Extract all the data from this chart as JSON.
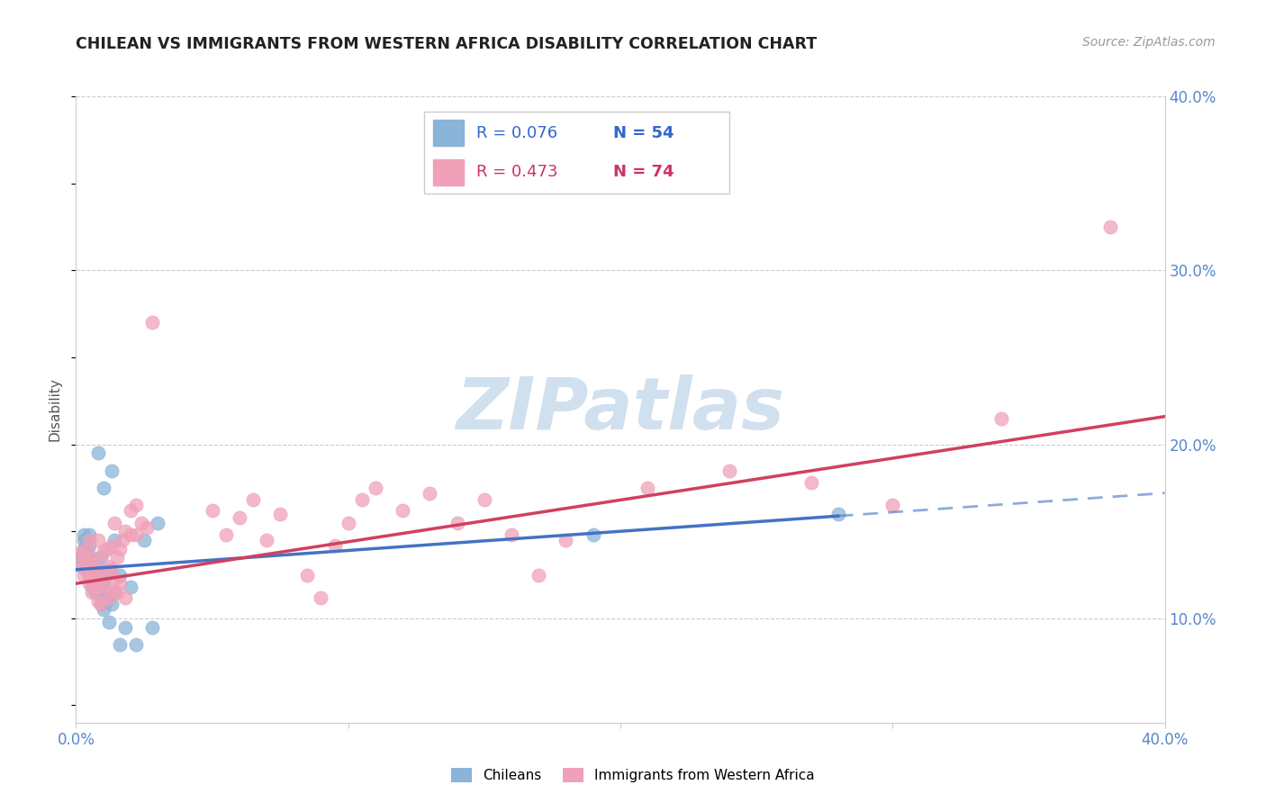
{
  "title": "CHILEAN VS IMMIGRANTS FROM WESTERN AFRICA DISABILITY CORRELATION CHART",
  "source": "Source: ZipAtlas.com",
  "ylabel": "Disability",
  "xlim": [
    0.0,
    0.4
  ],
  "ylim": [
    0.04,
    0.4
  ],
  "blue_color": "#8ab4d8",
  "pink_color": "#f0a0b8",
  "blue_line_color": "#4472c4",
  "pink_line_color": "#d04060",
  "blue_dash_color": "#8ab4d8",
  "watermark_color": "#d0e0ee",
  "chileans_x": [
    0.002,
    0.002,
    0.003,
    0.003,
    0.003,
    0.003,
    0.004,
    0.004,
    0.004,
    0.004,
    0.005,
    0.005,
    0.005,
    0.005,
    0.005,
    0.006,
    0.006,
    0.006,
    0.006,
    0.007,
    0.007,
    0.007,
    0.007,
    0.008,
    0.008,
    0.008,
    0.008,
    0.008,
    0.009,
    0.009,
    0.009,
    0.01,
    0.01,
    0.01,
    0.01,
    0.011,
    0.011,
    0.012,
    0.012,
    0.012,
    0.013,
    0.013,
    0.014,
    0.014,
    0.016,
    0.016,
    0.018,
    0.02,
    0.022,
    0.025,
    0.028,
    0.03,
    0.19,
    0.28
  ],
  "chileans_y": [
    0.13,
    0.135,
    0.14,
    0.145,
    0.148,
    0.135,
    0.128,
    0.132,
    0.138,
    0.143,
    0.125,
    0.13,
    0.135,
    0.142,
    0.148,
    0.118,
    0.122,
    0.128,
    0.133,
    0.12,
    0.115,
    0.125,
    0.13,
    0.115,
    0.12,
    0.125,
    0.13,
    0.195,
    0.108,
    0.118,
    0.135,
    0.105,
    0.112,
    0.12,
    0.175,
    0.11,
    0.125,
    0.098,
    0.112,
    0.128,
    0.108,
    0.185,
    0.115,
    0.145,
    0.085,
    0.125,
    0.095,
    0.118,
    0.085,
    0.145,
    0.095,
    0.155,
    0.148,
    0.16
  ],
  "immigrants_x": [
    0.002,
    0.002,
    0.003,
    0.003,
    0.004,
    0.004,
    0.004,
    0.005,
    0.005,
    0.005,
    0.005,
    0.006,
    0.006,
    0.006,
    0.006,
    0.007,
    0.007,
    0.007,
    0.008,
    0.008,
    0.008,
    0.009,
    0.009,
    0.01,
    0.01,
    0.011,
    0.011,
    0.012,
    0.012,
    0.013,
    0.013,
    0.013,
    0.014,
    0.014,
    0.015,
    0.015,
    0.016,
    0.016,
    0.017,
    0.018,
    0.018,
    0.02,
    0.02,
    0.022,
    0.022,
    0.024,
    0.026,
    0.028,
    0.05,
    0.055,
    0.06,
    0.065,
    0.07,
    0.075,
    0.085,
    0.09,
    0.095,
    0.1,
    0.105,
    0.11,
    0.12,
    0.13,
    0.14,
    0.15,
    0.16,
    0.17,
    0.18,
    0.21,
    0.24,
    0.27,
    0.3,
    0.34,
    0.38
  ],
  "immigrants_y": [
    0.132,
    0.138,
    0.125,
    0.135,
    0.128,
    0.133,
    0.14,
    0.12,
    0.125,
    0.13,
    0.145,
    0.115,
    0.122,
    0.128,
    0.135,
    0.118,
    0.125,
    0.132,
    0.11,
    0.118,
    0.145,
    0.108,
    0.128,
    0.118,
    0.138,
    0.125,
    0.14,
    0.112,
    0.13,
    0.115,
    0.128,
    0.142,
    0.122,
    0.155,
    0.115,
    0.135,
    0.12,
    0.14,
    0.145,
    0.112,
    0.15,
    0.148,
    0.162,
    0.148,
    0.165,
    0.155,
    0.152,
    0.27,
    0.162,
    0.148,
    0.158,
    0.168,
    0.145,
    0.16,
    0.125,
    0.112,
    0.142,
    0.155,
    0.168,
    0.175,
    0.162,
    0.172,
    0.155,
    0.168,
    0.148,
    0.125,
    0.145,
    0.175,
    0.185,
    0.178,
    0.165,
    0.215,
    0.325
  ]
}
